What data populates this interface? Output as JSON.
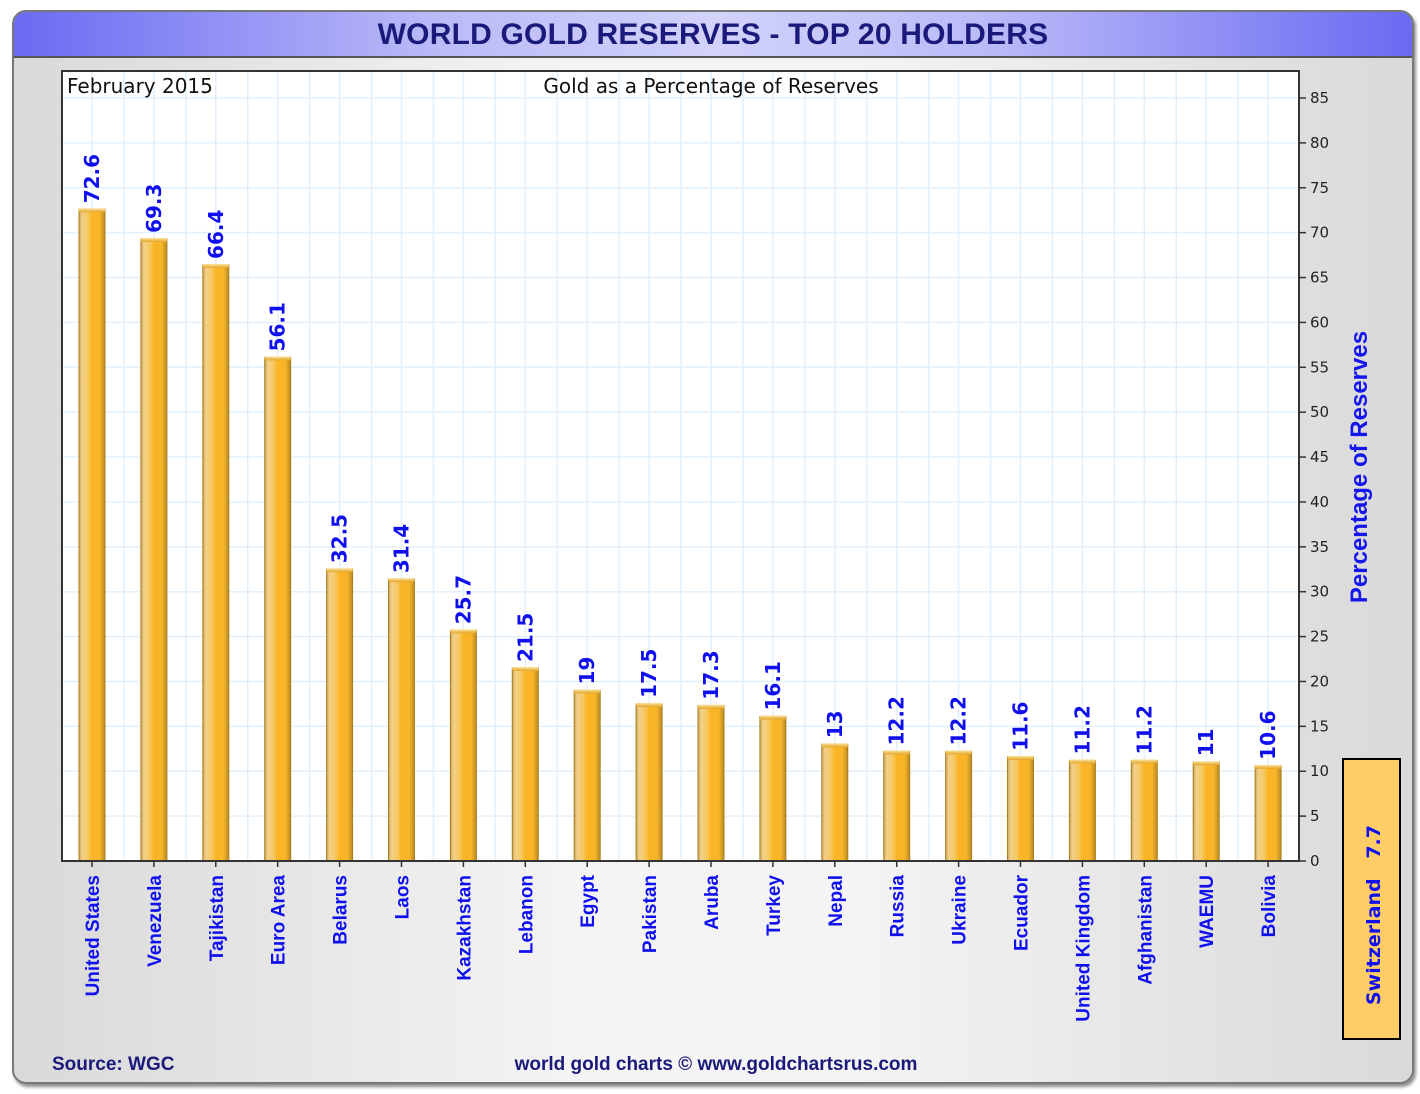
{
  "header": {
    "title": "WORLD GOLD RESERVES - TOP 20 HOLDERS"
  },
  "plot": {
    "date_label": "February 2015",
    "subtitle": "Gold as a Percentage of Reserves"
  },
  "footer": {
    "source": "Source: WGC",
    "credit": "world gold charts © www.goldchartsrus.com"
  },
  "inset": {
    "country": "Switzerland",
    "value": "7.7"
  },
  "colors": {
    "bar": "#fbb424",
    "bar_light": "#f3d08a",
    "bar_edge": "#a8801c",
    "labels": "#1010ee",
    "title": "#1a1a7a",
    "grid": "#e2f0fb",
    "inset_fill": "#ffcc66"
  },
  "chart_data": {
    "type": "bar",
    "title": "WORLD GOLD RESERVES - TOP 20 HOLDERS",
    "subtitle": "Gold as a Percentage of Reserves",
    "annotation": "February 2015",
    "xlabel": "",
    "ylabel": "Percentage of Reserves",
    "y_axis_side": "right",
    "ylim": [
      0,
      85
    ],
    "yticks": [
      0,
      5,
      10,
      15,
      20,
      25,
      30,
      35,
      40,
      45,
      50,
      55,
      60,
      65,
      70,
      75,
      80,
      85
    ],
    "grid": true,
    "categories": [
      "United States",
      "Venezuela",
      "Tajikistan",
      "Euro Area",
      "Belarus",
      "Laos",
      "Kazakhstan",
      "Lebanon",
      "Egypt",
      "Pakistan",
      "Aruba",
      "Turkey",
      "Nepal",
      "Russia",
      "Ukraine",
      "Ecuador",
      "United Kingdom",
      "Afghanistan",
      "WAEMU",
      "Bolivia"
    ],
    "values": [
      72.6,
      69.3,
      66.4,
      56.1,
      32.5,
      31.4,
      25.7,
      21.5,
      19,
      17.5,
      17.3,
      16.1,
      13,
      12.2,
      12.2,
      11.6,
      11.2,
      11.2,
      11,
      10.6
    ],
    "value_labels": [
      "72.6",
      "69.3",
      "66.4",
      "56.1",
      "32.5",
      "31.4",
      "25.7",
      "21.5",
      "19",
      "17.5",
      "17.3",
      "16.1",
      "13",
      "12.2",
      "12.2",
      "11.6",
      "11.2",
      "11.2",
      "11",
      "10.6"
    ],
    "extra_annotation": {
      "label": "Switzerland",
      "value": 7.7
    }
  }
}
